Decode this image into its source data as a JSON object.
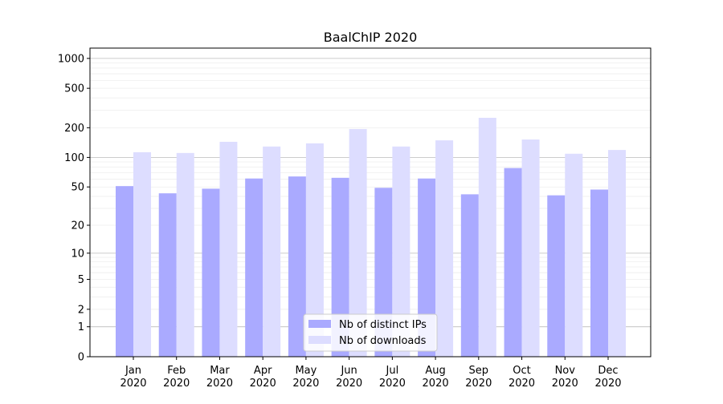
{
  "chart_data": {
    "type": "bar",
    "title": "BaalChIP 2020",
    "xlabel": "",
    "ylabel": "",
    "yscale": "symlog (log10(1+y))",
    "ylim": [
      0,
      1270
    ],
    "grid": true,
    "legend_placement": "bottom-center",
    "categories": [
      "Jan\n2020",
      "Feb\n2020",
      "Mar\n2020",
      "Apr\n2020",
      "May\n2020",
      "Jun\n2020",
      "Jul\n2020",
      "Aug\n2020",
      "Sep\n2020",
      "Oct\n2020",
      "Nov\n2020",
      "Dec\n2020"
    ],
    "yticks": [
      0,
      1,
      2,
      5,
      10,
      20,
      50,
      100,
      200,
      500,
      1000
    ],
    "series": [
      {
        "name": "Nb of distinct IPs",
        "color": "#aaaaff",
        "values": [
          51,
          43,
          48,
          61,
          64,
          62,
          49,
          61,
          42,
          78,
          41,
          47
        ]
      },
      {
        "name": "Nb of downloads",
        "color": "#ddddff",
        "values": [
          113,
          111,
          144,
          129,
          139,
          194,
          129,
          149,
          252,
          152,
          109,
          119
        ]
      }
    ]
  }
}
